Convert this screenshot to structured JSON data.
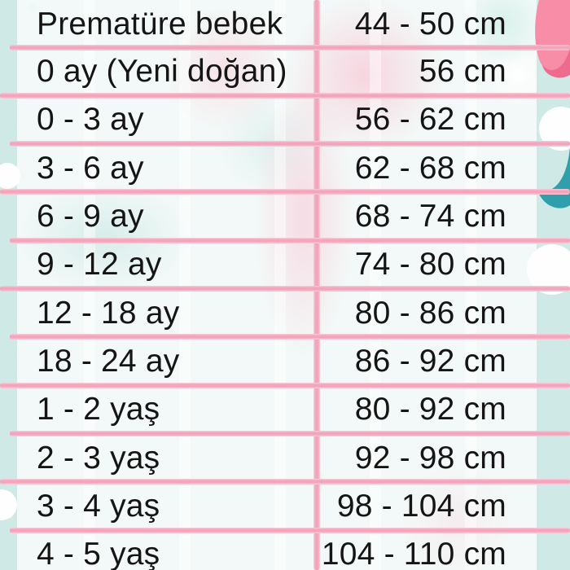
{
  "colors": {
    "page_bg": "#cfe9e6",
    "table_bg": "#f3f9f8",
    "divider_pink": "#f2a6bc",
    "divider_pink_soft": "#f9cdda",
    "text": "#151515",
    "deco_pink": "#f78da6",
    "deco_pink_dark": "#ee6a8e",
    "deco_teal_dark": "#2f9fab",
    "cloud_white": "#fdfefd"
  },
  "table": {
    "unit": "cm",
    "rows": [
      {
        "age": "Prematüre bebek",
        "size": "44 - 50 cm"
      },
      {
        "age": "0 ay (Yeni doğan)",
        "size": "56 cm"
      },
      {
        "age": "0 - 3 ay",
        "size": "56 - 62 cm"
      },
      {
        "age": "3 - 6 ay",
        "size": "62 - 68 cm"
      },
      {
        "age": "6 - 9 ay",
        "size": "68 - 74 cm"
      },
      {
        "age": "9 - 12 ay",
        "size": "74 - 80 cm"
      },
      {
        "age": "12 - 18 ay",
        "size": "80 - 86 cm"
      },
      {
        "age": "18 - 24 ay",
        "size": "86 - 92 cm"
      },
      {
        "age": "1 - 2 yaş",
        "size": "80 - 92 cm"
      },
      {
        "age": "2 - 3 yaş",
        "size": "92 - 98 cm"
      },
      {
        "age": "3 - 4 yaş",
        "size": "98 - 104 cm"
      },
      {
        "age": "4 - 5 yaş",
        "size": "104 - 110 cm"
      }
    ]
  },
  "chart_data": {
    "type": "table",
    "columns": [
      "age",
      "size"
    ],
    "rows": [
      [
        "Prematüre bebek",
        "44 - 50 cm"
      ],
      [
        "0 ay (Yeni doğan)",
        "56 cm"
      ],
      [
        "0 - 3 ay",
        "56 - 62 cm"
      ],
      [
        "3 - 6 ay",
        "62 - 68 cm"
      ],
      [
        "6 - 9 ay",
        "68 - 74 cm"
      ],
      [
        "9 - 12 ay",
        "74 - 80 cm"
      ],
      [
        "12 - 18 ay",
        "80 - 86 cm"
      ],
      [
        "18 - 24 ay",
        "86 - 92 cm"
      ],
      [
        "1 - 2 yaş",
        "80 - 92 cm"
      ],
      [
        "2 - 3 yaş",
        "92 - 98 cm"
      ],
      [
        "3 - 4 yaş",
        "98 - 104 cm"
      ],
      [
        "4 - 5 yaş",
        "104 - 110 cm"
      ]
    ]
  }
}
